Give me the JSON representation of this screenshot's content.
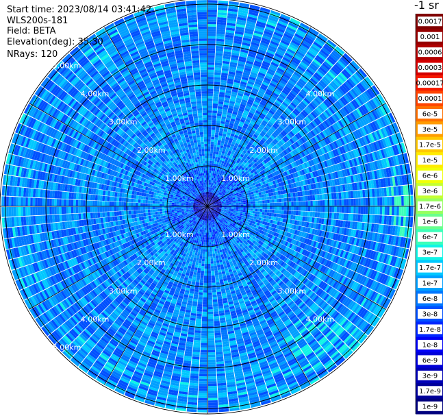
{
  "info": {
    "start_time": "Start time: 2023/08/14 03:41:42",
    "instrument": "WLS200s-181",
    "field": "Field: BETA",
    "elevation": "Elevation(deg): 35.30",
    "nrays": "NRays: 120"
  },
  "colorbar": {
    "title": "-1 sr",
    "labels": [
      "0.0017",
      "0.001",
      "0.0006",
      "0.0003",
      "0.00017",
      "0.0001",
      "6e-5",
      "3e-5",
      "1.7e-5",
      "1e-5",
      "6e-6",
      "3e-6",
      "1.7e-6",
      "1e-6",
      "6e-7",
      "3e-7",
      "1.7e-7",
      "1e-7",
      "6e-8",
      "3e-8",
      "1.7e-8",
      "1e-8",
      "6e-9",
      "3e-9",
      "1.7e-9",
      "1e-9"
    ],
    "colors": [
      "#800000",
      "#960000",
      "#b00000",
      "#d40000",
      "#f61a00",
      "#ff4400",
      "#ff7000",
      "#ff9c00",
      "#ffc800",
      "#ffeb00",
      "#f0ff07",
      "#c4ff33",
      "#97ff60",
      "#6aff8d",
      "#3dffba",
      "#10f4e6",
      "#00c8ff",
      "#00a0ff",
      "#0078ff",
      "#0050ff",
      "#0028ff",
      "#0000f6",
      "#0000d8",
      "#0000b6",
      "#00009a",
      "#00007e"
    ]
  },
  "chart_data": {
    "type": "heatmap",
    "projection": "polar (PPI scan)",
    "field": "BETA",
    "elevation_deg": 35.3,
    "n_rays": 120,
    "range_rings_km": [
      1,
      2,
      3,
      4,
      5
    ],
    "range_labels": [
      "1.00km",
      "2.00km",
      "3.00km",
      "4.00km",
      "5.00km"
    ],
    "max_range_km": 5.1,
    "color_scale": "log",
    "value_range": [
      1e-09,
      0.0017
    ],
    "dominant_value_range": [
      1e-08,
      6e-07
    ],
    "near_center_value_range": [
      1e-09,
      1e-08
    ],
    "colorbar_title": "-1 sr"
  }
}
